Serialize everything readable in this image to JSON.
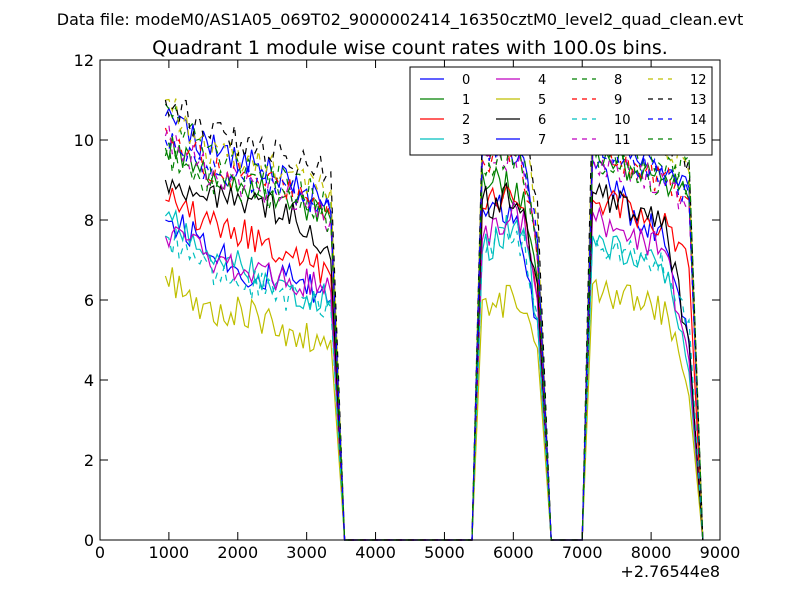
{
  "chart_data": {
    "type": "line",
    "suptitle": "Data file: modeM0/AS1A05_069T02_9000002414_16350cztM0_level2_quad_clean.evt",
    "title": "Quadrant 1 module wise count rates with 100.0s bins.",
    "xlabel": "",
    "ylabel": "",
    "x_offset_label": "+2.76544e8",
    "xlim": [
      0,
      9000
    ],
    "ylim": [
      0,
      12
    ],
    "xticks": [
      0,
      1000,
      2000,
      3000,
      4000,
      5000,
      6000,
      7000,
      8000,
      9000
    ],
    "yticks": [
      0,
      2,
      4,
      6,
      8,
      10,
      12
    ],
    "xtick_labels": [
      "0",
      "1000",
      "2000",
      "3000",
      "4000",
      "5000",
      "6000",
      "7000",
      "8000",
      "9000"
    ],
    "ytick_labels": [
      "0",
      "2",
      "4",
      "6",
      "8",
      "10",
      "12"
    ],
    "grid": false,
    "legend_position": "top-right",
    "legend_columns": 4,
    "segments": [
      {
        "x_start": 950,
        "x_end": 3350
      },
      {
        "x_start": 5550,
        "x_end": 6350
      },
      {
        "x_start": 7150,
        "x_end": 8550
      }
    ],
    "series": [
      {
        "name": "0",
        "color": "#0000ff",
        "dash": "solid",
        "values": [
          [
            8.0,
            7.5,
            6.6,
            6.5,
            6.0
          ],
          [
            8.3,
            8.3,
            8.2,
            7.2,
            5.5
          ],
          [
            9.5,
            8.6,
            8.0,
            7.7,
            4.9
          ]
        ]
      },
      {
        "name": "1",
        "color": "#008000",
        "dash": "solid",
        "values": [
          [
            9.8,
            9.2,
            8.8,
            8.6,
            8.0
          ],
          [
            9.2,
            9.0,
            8.8,
            8.6,
            6.5
          ],
          [
            9.6,
            9.4,
            9.2,
            9.0,
            8.5
          ]
        ]
      },
      {
        "name": "2",
        "color": "#ff0000",
        "dash": "solid",
        "values": [
          [
            8.5,
            8.0,
            7.6,
            7.2,
            6.6
          ],
          [
            8.3,
            8.5,
            8.5,
            8.0,
            6.0
          ],
          [
            8.5,
            8.4,
            8.2,
            7.9,
            6.8
          ]
        ]
      },
      {
        "name": "3",
        "color": "#00bfbf",
        "dash": "solid",
        "values": [
          [
            8.1,
            7.2,
            6.8,
            6.2,
            6.0
          ],
          [
            7.2,
            7.5,
            7.8,
            7.6,
            5.5
          ],
          [
            7.6,
            7.2,
            7.0,
            6.8,
            4.2
          ]
        ]
      },
      {
        "name": "4",
        "color": "#bf00bf",
        "dash": "solid",
        "values": [
          [
            7.6,
            7.1,
            6.8,
            6.6,
            6.2
          ],
          [
            7.5,
            7.8,
            8.1,
            8.0,
            6.0
          ],
          [
            8.2,
            7.8,
            7.5,
            7.2,
            4.5
          ]
        ]
      },
      {
        "name": "5",
        "color": "#bfbf00",
        "dash": "solid",
        "values": [
          [
            6.6,
            5.7,
            5.7,
            5.2,
            5.0
          ],
          [
            6.0,
            5.8,
            6.1,
            6.0,
            4.8
          ],
          [
            6.4,
            6.1,
            5.9,
            5.7,
            3.6
          ]
        ]
      },
      {
        "name": "6",
        "color": "#000000",
        "dash": "solid",
        "values": [
          [
            9.0,
            8.5,
            8.4,
            8.2,
            7.0
          ],
          [
            8.5,
            8.3,
            8.6,
            8.2,
            6.4
          ],
          [
            8.7,
            8.5,
            8.2,
            7.8,
            5.0
          ]
        ]
      },
      {
        "name": "7",
        "color": "#0000ff",
        "dash": "solid",
        "values": [
          [
            10.6,
            9.8,
            9.4,
            9.0,
            8.2
          ],
          [
            9.8,
            10.0,
            9.8,
            9.5,
            7.5
          ],
          [
            10.0,
            9.7,
            9.4,
            9.1,
            8.8
          ]
        ]
      },
      {
        "name": "8",
        "color": "#008000",
        "dash": "dashed",
        "values": [
          [
            10.9,
            9.6,
            9.3,
            9.0,
            8.5
          ],
          [
            9.6,
            9.8,
            10.0,
            9.6,
            7.2
          ],
          [
            9.9,
            9.6,
            9.4,
            9.2,
            9.0
          ]
        ]
      },
      {
        "name": "9",
        "color": "#ff0000",
        "dash": "dashed",
        "values": [
          [
            10.3,
            9.4,
            9.0,
            8.8,
            8.0
          ],
          [
            9.5,
            9.7,
            9.8,
            9.2,
            7.0
          ],
          [
            9.8,
            9.5,
            9.2,
            9.0,
            8.5
          ]
        ]
      },
      {
        "name": "10",
        "color": "#00bfbf",
        "dash": "dashed",
        "values": [
          [
            7.6,
            6.8,
            6.4,
            6.1,
            5.8
          ],
          [
            7.2,
            7.5,
            7.6,
            7.4,
            5.6
          ],
          [
            7.6,
            7.3,
            7.0,
            6.8,
            5.5
          ]
        ]
      },
      {
        "name": "11",
        "color": "#bf00bf",
        "dash": "dashed",
        "values": [
          [
            10.1,
            9.2,
            8.9,
            8.6,
            8.0
          ],
          [
            9.4,
            9.6,
            9.6,
            9.3,
            7.0
          ],
          [
            9.6,
            9.3,
            9.1,
            8.9,
            8.4
          ]
        ]
      },
      {
        "name": "12",
        "color": "#bfbf00",
        "dash": "dashed",
        "values": [
          [
            11.0,
            9.8,
            9.5,
            9.2,
            8.8
          ],
          [
            10.2,
            10.6,
            10.8,
            10.5,
            8.0
          ],
          [
            10.8,
            10.5,
            10.0,
            9.8,
            9.2
          ]
        ]
      },
      {
        "name": "13",
        "color": "#000000",
        "dash": "dashed",
        "values": [
          [
            11.0,
            10.2,
            9.9,
            9.6,
            9.2
          ],
          [
            10.2,
            10.9,
            11.2,
            10.8,
            8.5
          ],
          [
            11.2,
            10.8,
            10.5,
            10.0,
            9.5
          ]
        ]
      },
      {
        "name": "14",
        "color": "#0000ff",
        "dash": "dashed",
        "values": [
          [
            10.0,
            9.3,
            9.0,
            8.7,
            8.2
          ],
          [
            9.7,
            9.9,
            10.0,
            9.6,
            7.5
          ],
          [
            10.0,
            9.7,
            9.4,
            9.2,
            8.6
          ]
        ]
      },
      {
        "name": "15",
        "color": "#008000",
        "dash": "dashed",
        "values": [
          [
            9.6,
            9.0,
            8.8,
            8.5,
            8.0
          ],
          [
            9.3,
            9.5,
            9.6,
            9.2,
            7.2
          ],
          [
            9.6,
            9.3,
            9.1,
            8.9,
            9.6
          ]
        ]
      }
    ]
  }
}
